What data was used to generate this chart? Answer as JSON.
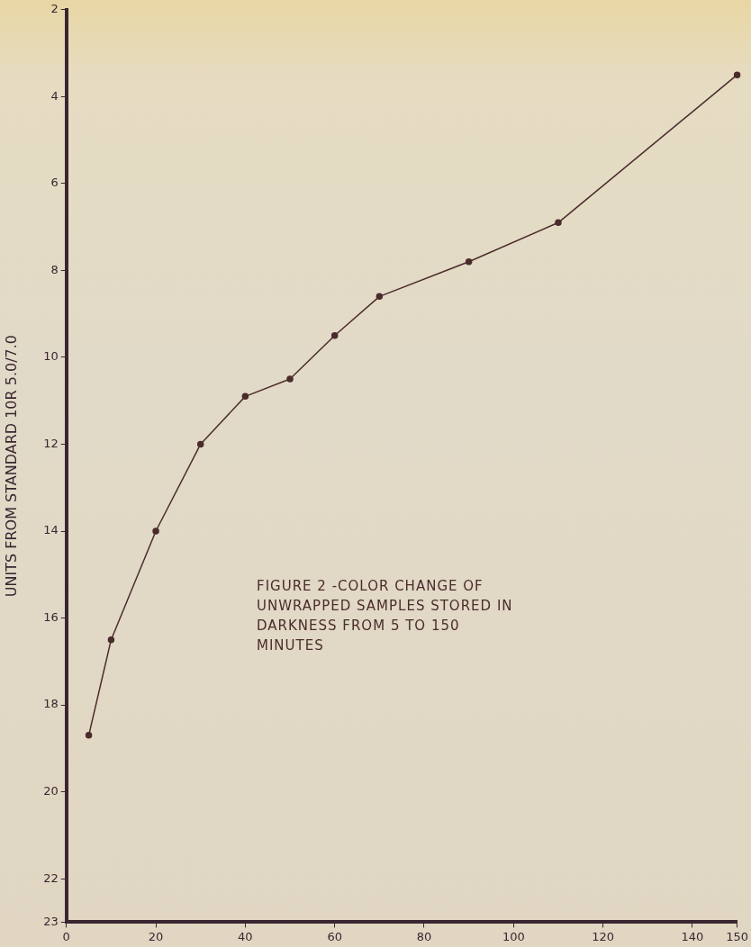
{
  "chart_data": {
    "type": "line",
    "title": "FIGURE 2 -COLOR CHANGE OF UNWRAPPED SAMPLES STORED IN DARKNESS FROM 5 TO 150 MINUTES",
    "ylabel": "UNITS FROM STANDARD 10R 5.0/7.0",
    "x": [
      5,
      10,
      20,
      30,
      40,
      50,
      60,
      70,
      90,
      110,
      150
    ],
    "series": [
      {
        "color": "#4a2c2c",
        "values": [
          18.7,
          16.5,
          14.0,
          12.0,
          10.9,
          10.5,
          9.5,
          8.6,
          7.8,
          6.9,
          3.5
        ]
      }
    ],
    "xlim": [
      0,
      150
    ],
    "xticks": [
      0,
      20,
      40,
      60,
      80,
      100,
      120,
      140,
      150
    ],
    "ylim": [
      23,
      2
    ],
    "yticks": [
      2,
      4,
      6,
      8,
      10,
      12,
      14,
      16,
      18,
      20,
      22,
      23
    ],
    "grid": false,
    "legend": false,
    "marker": "circle",
    "line_style": "solid"
  }
}
